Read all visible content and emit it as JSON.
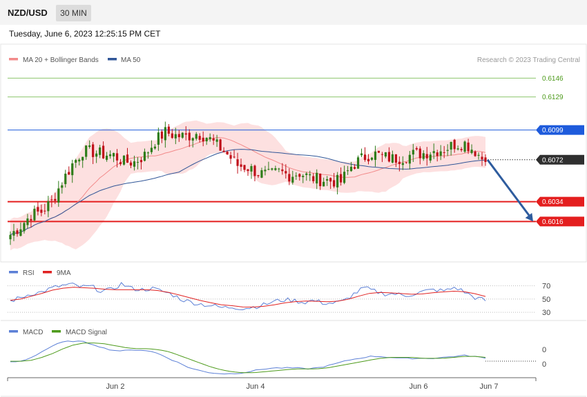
{
  "header": {
    "symbol": "NZD/USD",
    "timeframe": "30 MIN",
    "datetime": "Tuesday, June 6, 2023 12:25:15 PM CET"
  },
  "credit": "Research © 2023 Trading Central",
  "legends": {
    "main": [
      {
        "label": "MA 20 + Bollinger Bands",
        "color": "#f28a8a"
      },
      {
        "label": "MA 50",
        "color": "#2f5597"
      }
    ],
    "rsi": [
      {
        "label": "RSI",
        "color": "#5b7fd6"
      },
      {
        "label": "9MA",
        "color": "#e02020"
      }
    ],
    "macd": [
      {
        "label": "MACD",
        "color": "#5b7fd6"
      },
      {
        "label": "MACD Signal",
        "color": "#4c9a1a"
      }
    ]
  },
  "colors": {
    "bull_candle": "#2e7d1a",
    "bear_candle": "#c0101a",
    "resistance_green": "#8cc46b",
    "pivot_blue": "#1e5bdc",
    "support_red": "#e41e1e",
    "current_price": "#2f2f2f",
    "band_fill": "#fde0e0",
    "forecast_arrow": "#2e5c9e"
  },
  "chart_data": [
    {
      "type": "candlestick",
      "title": "",
      "x_ticks": [
        "Jun 2",
        "Jun 4",
        "Jun 6",
        "Jun 7"
      ],
      "ylim": [
        0.5995,
        0.6155
      ],
      "levels": [
        {
          "value": 0.6146,
          "label": "0.6146",
          "kind": "resistance"
        },
        {
          "value": 0.6129,
          "label": "0.6129",
          "kind": "resistance"
        },
        {
          "value": 0.6099,
          "label": "0.6099",
          "kind": "pivot"
        },
        {
          "value": 0.6072,
          "label": "0.6072",
          "kind": "current"
        },
        {
          "value": 0.6034,
          "label": "0.6034",
          "kind": "support"
        },
        {
          "value": 0.6016,
          "label": "0.6016",
          "kind": "support"
        }
      ],
      "forecast": {
        "from": 0.6072,
        "to": 0.6016
      },
      "ohlc_anchors": [
        0.6004,
        0.6012,
        0.6022,
        0.6025,
        0.6034,
        0.6052,
        0.6068,
        0.608,
        0.6079,
        0.6077,
        0.6076,
        0.607,
        0.607,
        0.6076,
        0.6089,
        0.6097,
        0.6094,
        0.6093,
        0.6096,
        0.6093,
        0.6085,
        0.6077,
        0.6067,
        0.6065,
        0.606,
        0.6058,
        0.6061,
        0.6058,
        0.606,
        0.6056,
        0.6054,
        0.6053,
        0.6052,
        0.6066,
        0.6073,
        0.6078,
        0.6075,
        0.6073,
        0.6074,
        0.6077,
        0.6078,
        0.608,
        0.6082,
        0.6086,
        0.6087,
        0.608,
        0.607
      ]
    },
    {
      "type": "line",
      "title": "RSI",
      "ylim": [
        25,
        80
      ],
      "y_ticks": [
        70,
        50,
        30
      ],
      "series": [
        {
          "name": "RSI",
          "values": [
            47,
            52,
            58,
            60,
            66,
            70,
            72,
            68,
            69,
            62,
            64,
            73,
            66,
            64,
            66,
            62,
            57,
            49,
            45,
            42,
            40,
            37,
            38,
            36,
            38,
            41,
            46,
            49,
            48,
            45,
            48,
            44,
            44,
            47,
            58,
            67,
            62,
            58,
            58,
            55,
            58,
            62,
            64,
            62,
            68,
            60,
            52,
            48
          ]
        },
        {
          "name": "9MA",
          "values": [
            48,
            50,
            54,
            58,
            63,
            66,
            68,
            67,
            67,
            65,
            64,
            64,
            64,
            64,
            64,
            62,
            59,
            55,
            51,
            47,
            44,
            41,
            40,
            38,
            38,
            39,
            41,
            44,
            46,
            47,
            47,
            46,
            46,
            48,
            52,
            57,
            60,
            60,
            59,
            58,
            57,
            58,
            60,
            61,
            62,
            61,
            58,
            54
          ]
        }
      ]
    },
    {
      "type": "line",
      "title": "MACD",
      "y_ticks": [
        0,
        0
      ],
      "series": [
        {
          "name": "MACD",
          "values": [
            -0.2,
            -0.1,
            0.3,
            0.9,
            1.5,
            1.9,
            2.0,
            1.9,
            1.6,
            1.2,
            1.0,
            1.0,
            1.1,
            1.0,
            0.7,
            0.2,
            -0.3,
            -0.8,
            -1.1,
            -1.3,
            -1.4,
            -1.4,
            -1.3,
            -1.1,
            -0.9,
            -0.8,
            -0.8,
            -0.8,
            -0.9,
            -0.8,
            -0.6,
            -0.3,
            0.0,
            0.2,
            0.4,
            0.4,
            0.3,
            0.2,
            0.2,
            0.2,
            0.2,
            0.3,
            0.4,
            0.5,
            0.4,
            0.2
          ]
        },
        {
          "name": "MACD Signal",
          "values": [
            -0.1,
            -0.1,
            0.0,
            0.3,
            0.7,
            1.2,
            1.6,
            1.8,
            1.8,
            1.7,
            1.5,
            1.3,
            1.2,
            1.2,
            1.1,
            0.9,
            0.5,
            0.1,
            -0.3,
            -0.7,
            -1.0,
            -1.2,
            -1.3,
            -1.3,
            -1.2,
            -1.1,
            -1.0,
            -0.9,
            -0.9,
            -0.9,
            -0.8,
            -0.6,
            -0.4,
            -0.2,
            0.0,
            0.2,
            0.3,
            0.3,
            0.3,
            0.2,
            0.2,
            0.2,
            0.3,
            0.4,
            0.4,
            0.3
          ]
        }
      ]
    }
  ]
}
